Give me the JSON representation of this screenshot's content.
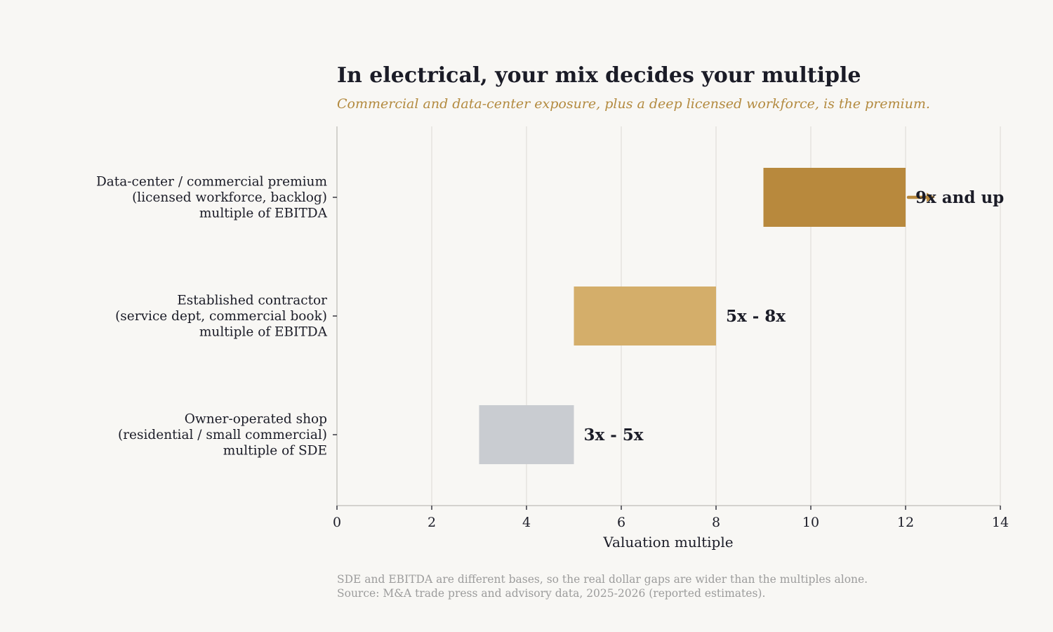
{
  "chart_data": {
    "type": "bar",
    "orientation": "horizontal",
    "title": "In electrical, your mix decides your multiple",
    "subtitle": "Commercial and data-center exposure, plus a deep licensed workforce, is the premium.",
    "xlabel": "Valuation multiple",
    "xlim": [
      0,
      14
    ],
    "xticks": [
      0,
      2,
      4,
      6,
      8,
      10,
      12,
      14
    ],
    "grid": "vertical",
    "categories": [
      {
        "lines": [
          "Data-center / commercial premium",
          "(licensed workforce, backlog)",
          "multiple of EBITDA"
        ],
        "low": 9,
        "high": 12,
        "label": "9x and up",
        "open_ended": true,
        "color": "#b8893d"
      },
      {
        "lines": [
          "Established contractor",
          "(service dept, commercial book)",
          "multiple of EBITDA"
        ],
        "low": 5,
        "high": 8,
        "label": "5x - 8x",
        "open_ended": false,
        "color": "#d4ae6a"
      },
      {
        "lines": [
          "Owner-operated shop",
          "(residential / small commercial)",
          "multiple of SDE"
        ],
        "low": 3,
        "high": 5,
        "label": "3x - 5x",
        "open_ended": false,
        "color": "#c9ccd1"
      }
    ],
    "footnotes": [
      "SDE and EBITDA are different bases, so the real dollar gaps are wider than the multiples alone.",
      "Source: M&A trade press and advisory data, 2025-2026 (reported estimates)."
    ]
  },
  "colors": {
    "text": "#1b1c27",
    "accent": "#b38a3f",
    "arrow": "#b8893d",
    "grid": "#e6e4df",
    "axis": "#cfcdc9",
    "footnote": "#9c9c9c"
  }
}
